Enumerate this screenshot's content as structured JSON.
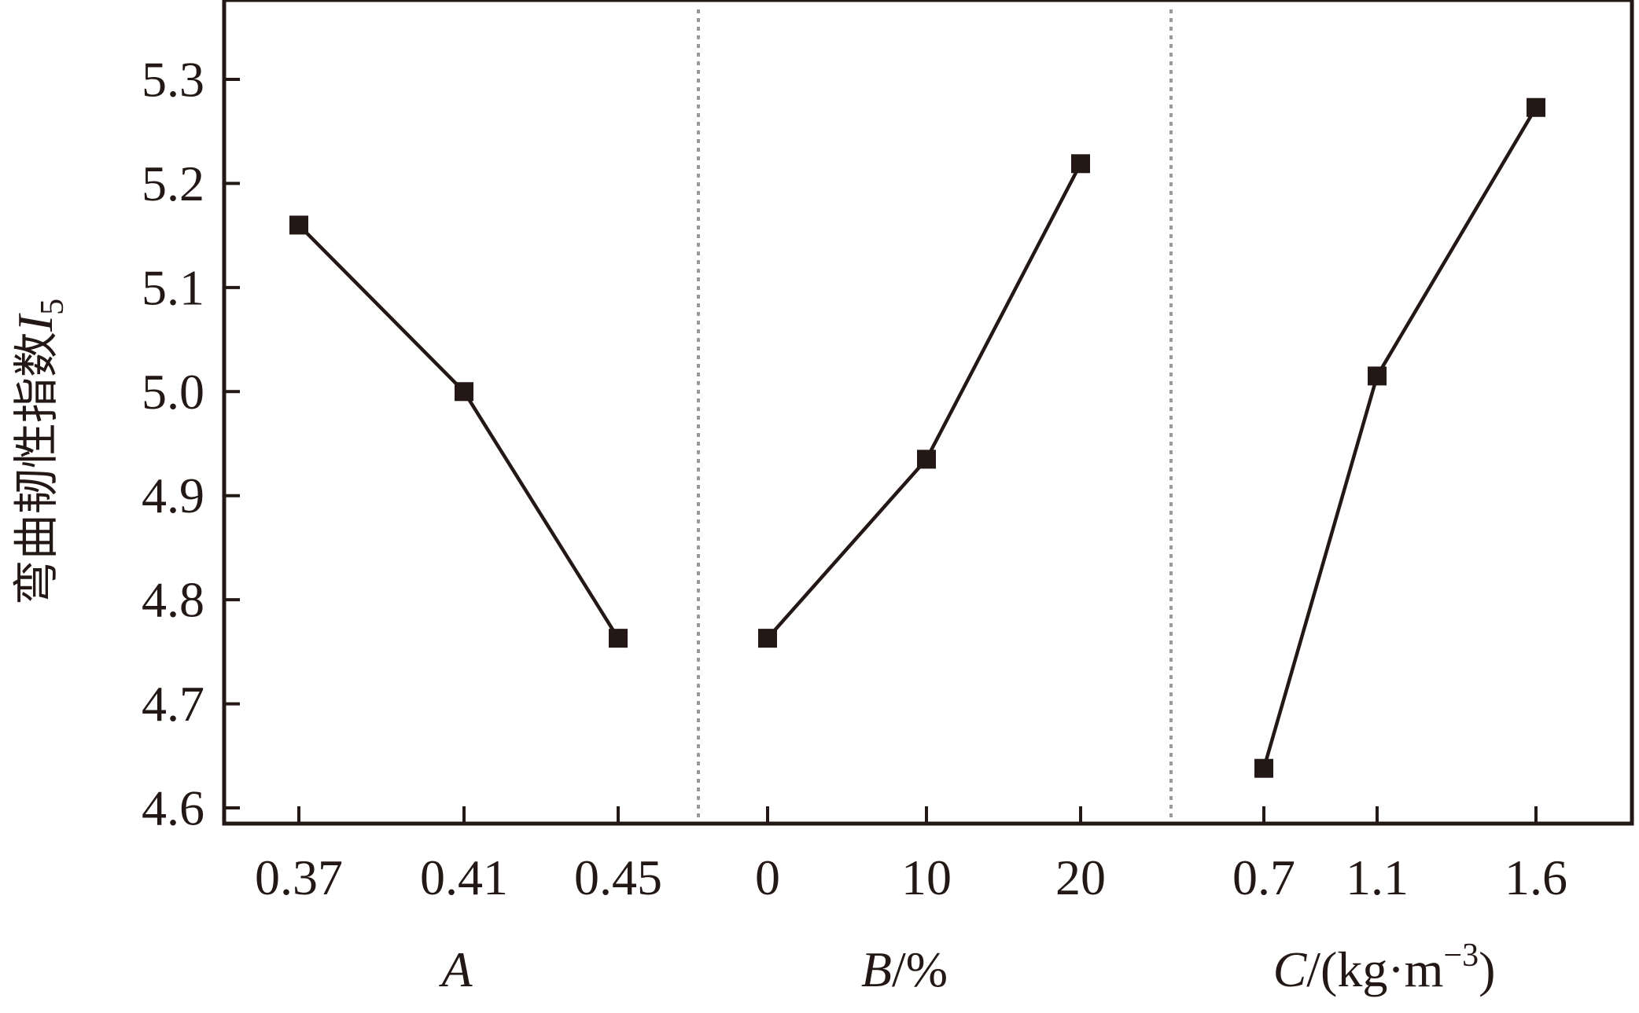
{
  "chart_data": {
    "type": "line",
    "ylabel": "弯曲韧性指数",
    "ylabel_symbol": "I",
    "ylabel_subscript": "5",
    "ylim": [
      4.6,
      5.35
    ],
    "yticks": [
      "4.6",
      "4.7",
      "4.8",
      "4.9",
      "5.0",
      "5.1",
      "5.2",
      "5.3"
    ],
    "grid": false,
    "line_color": "#231815",
    "separator_color": "#9a9a9a",
    "panels": [
      {
        "factor": "A",
        "unit": "",
        "categories": [
          "0.37",
          "0.41",
          "0.45"
        ],
        "values": [
          5.16,
          5.0,
          4.763
        ]
      },
      {
        "factor": "B",
        "unit": "/%",
        "categories": [
          "0",
          "10",
          "20"
        ],
        "values": [
          4.763,
          4.935,
          5.219
        ]
      },
      {
        "factor": "C",
        "unit": "/(kg·m",
        "unit_exponent": "−3",
        "unit_close": ")",
        "categories": [
          "0.7",
          "1.1",
          "1.6"
        ],
        "values": [
          4.638,
          5.015,
          5.273
        ]
      }
    ]
  }
}
